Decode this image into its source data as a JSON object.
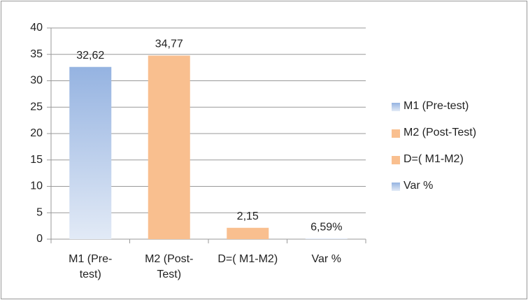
{
  "chart_data": {
    "type": "bar",
    "categories": [
      "M1 (Pre-test)",
      "M2 (Post-Test)",
      "D=( M1-M2)",
      "Var %"
    ],
    "values": [
      32.62,
      34.77,
      2.15,
      0.0659
    ],
    "value_labels": [
      "32,62",
      "34,77",
      "2,15",
      "6,59%"
    ],
    "colors": [
      "#95b3e1",
      "#f9bf8f",
      "#f9bf8f",
      "#95b3e1"
    ],
    "ylim": [
      0,
      40
    ],
    "yticks": [
      0,
      5,
      10,
      15,
      20,
      25,
      30,
      35,
      40
    ],
    "grid": true,
    "legend": "right"
  }
}
